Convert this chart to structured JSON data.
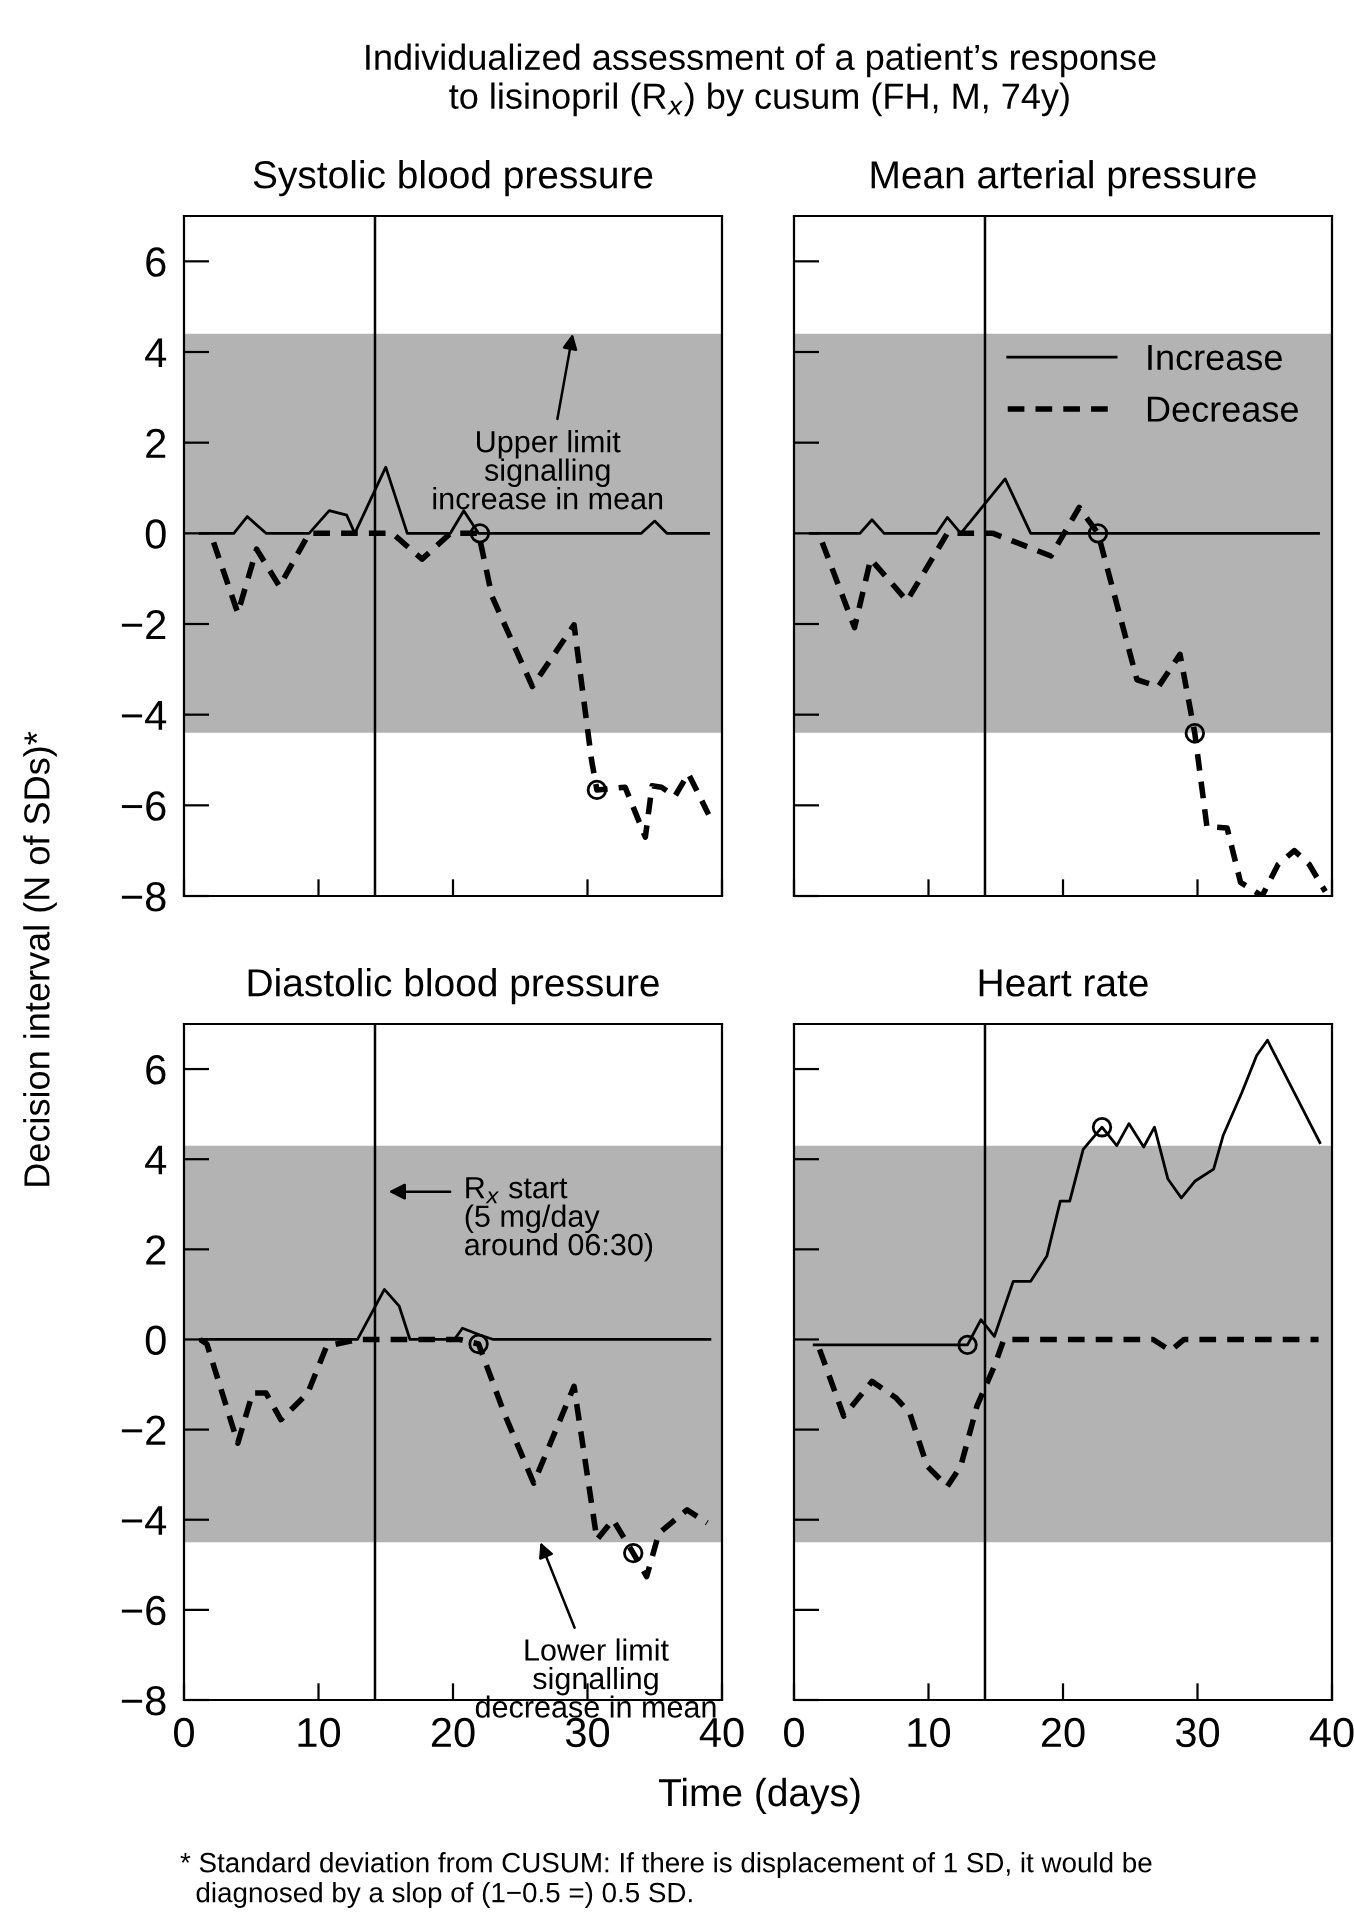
{
  "chart_data": [
    {
      "type": "line",
      "title": "Systolic blood pressure",
      "ylabel": "Decision interval (N of SDs)*",
      "annotations": [
        "Individualized assessment of a patient’s response\nto lisinopril (R$_{x}$) by cusum (FH, M, 74y)",
        {
          "text": "Upper limit\nsignalling\nincrease in mean",
          "x": 28.9,
          "y": 4.4
        }
      ],
      "xlim": [
        0,
        40
      ],
      "ylim": [
        -8,
        7
      ],
      "xticks": [
        0,
        10,
        20,
        30,
        40
      ],
      "yticks": [
        -8,
        -6,
        -4,
        -2,
        0,
        2,
        4,
        6
      ],
      "tick_labels": "y",
      "grid": false,
      "legend": false,
      "bands": [
        {
          "axis": "y",
          "from": -4.4,
          "to": 4.4,
          "color": "#b3b3b3"
        }
      ],
      "ref_lines": [
        {
          "axis": "x",
          "value": 14.2,
          "color": "#000000"
        }
      ],
      "series": [
        {
          "type": "line",
          "line_style": "solid",
          "color": "#000000",
          "x": [
            1.2,
            3.7,
            4.7,
            6.1,
            9.3,
            10.8,
            12.1,
            12.7,
            15.0,
            16.6,
            19.8,
            20.8,
            21.9,
            34.0,
            35.0,
            35.9,
            39.0
          ],
          "values": [
            0,
            0,
            0.37,
            0,
            0,
            0.5,
            0.4,
            0,
            1.46,
            0,
            0,
            0.5,
            0,
            0,
            0.27,
            0,
            0
          ]
        },
        {
          "type": "line",
          "line_style": "dashed",
          "color": "#000000",
          "x": [
            2.2,
            4.0,
            5.4,
            7.1,
            9.3,
            12.7,
            15.5,
            17.7,
            19.8,
            21.9,
            22.9,
            25.9,
            29.0,
            30.3,
            30.7,
            32.8,
            34.3,
            34.8,
            35.5,
            36.5,
            37.5,
            39.0
          ],
          "values": [
            -0.2,
            -1.76,
            -0.35,
            -1.17,
            0,
            0,
            0,
            -0.57,
            0,
            0,
            -1.39,
            -3.38,
            -2.02,
            -5.0,
            -5.66,
            -5.6,
            -6.7,
            -5.57,
            -5.6,
            -5.8,
            -5.3,
            -6.2
          ]
        },
        {
          "type": "scatter",
          "marker": "circle",
          "color": "#000000",
          "x": [
            22.0,
            30.7
          ],
          "values": [
            0,
            -5.66
          ]
        }
      ]
    },
    {
      "type": "line",
      "title": "Mean arterial pressure",
      "xlim": [
        0,
        40
      ],
      "ylim": [
        -8,
        7
      ],
      "xticks": [
        0,
        10,
        20,
        30,
        40
      ],
      "yticks": [
        -8,
        -6,
        -4,
        -2,
        0,
        2,
        4,
        6
      ],
      "tick_labels": false,
      "grid": false,
      "legend": "top right",
      "bands": [
        {
          "axis": "y",
          "from": -4.4,
          "to": 4.4,
          "color": "#b3b3b3"
        }
      ],
      "ref_lines": [
        {
          "axis": "x",
          "value": 14.2,
          "color": "#000000"
        }
      ],
      "series": [
        {
          "name": "Increase",
          "type": "line",
          "line_style": "solid",
          "color": "#000000",
          "x": [
            1.2,
            4.9,
            5.8,
            6.7,
            10.6,
            11.4,
            12.4,
            15.7,
            17.6,
            39.0
          ],
          "values": [
            0,
            0,
            0.3,
            0,
            0,
            0.35,
            0,
            1.2,
            0,
            0
          ]
        },
        {
          "name": "Decrease",
          "type": "line",
          "line_style": "dashed",
          "color": "#000000",
          "x": [
            2.1,
            4.5,
            5.7,
            8.4,
            11.4,
            14.8,
            19.1,
            21.2,
            22.6,
            25.5,
            27.1,
            28.7,
            29.8,
            30.7,
            32.2,
            33.2,
            34.8,
            36.0,
            37.2,
            38.3,
            39.5
          ],
          "values": [
            -0.2,
            -2.08,
            -0.57,
            -1.49,
            0,
            0,
            -0.5,
            0.57,
            0,
            -3.23,
            -3.38,
            -2.67,
            -4.41,
            -6.47,
            -6.5,
            -7.7,
            -8.0,
            -7.3,
            -7.0,
            -7.3,
            -7.9
          ]
        },
        {
          "type": "scatter",
          "marker": "circle",
          "color": "#000000",
          "x": [
            22.6,
            29.8
          ],
          "values": [
            0,
            -4.41
          ]
        }
      ]
    },
    {
      "type": "line",
      "title": "Diastolic blood pressure",
      "xlabel": "Time (days)",
      "annotations": [
        "R$_{x}$ start\n(5 mg/day\naround 06:30)",
        {
          "text": "Lower limit\nsignalling\ndecrease in mean",
          "x": 26.5,
          "y": -4.5
        },
        "* Standard deviation from CUSUM: If there is displacement of 1 SD, it would be\n  diagnosed by a slop of (1−0.5 =) 0.5 SD."
      ],
      "xlim": [
        0,
        40
      ],
      "ylim": [
        -8,
        7
      ],
      "xticks": [
        0,
        10,
        20,
        30,
        40
      ],
      "yticks": [
        -8,
        -6,
        -4,
        -2,
        0,
        2,
        4,
        6
      ],
      "grid": false,
      "legend": false,
      "bands": [
        {
          "axis": "y",
          "from": -4.5,
          "to": 4.3,
          "color": "#b3b3b3"
        }
      ],
      "ref_lines": [
        {
          "axis": "x",
          "value": 14.2,
          "color": "#000000"
        }
      ],
      "series": [
        {
          "type": "line",
          "line_style": "solid",
          "color": "#000000",
          "x": [
            1.2,
            12.9,
            14.9,
            16.0,
            16.8,
            20.1,
            20.7,
            22.0,
            23.0,
            39.1
          ],
          "values": [
            0,
            0,
            1.11,
            0.74,
            0,
            0,
            0.25,
            0.1,
            0,
            0
          ]
        },
        {
          "type": "line",
          "line_style": "dashed",
          "color": "#000000",
          "x": [
            1.2,
            1.7,
            4.0,
            5.1,
            6.1,
            7.2,
            9.2,
            10.6,
            12.9,
            20.5,
            21.9,
            23.8,
            26.0,
            29.0,
            30.7,
            31.9,
            33.4,
            34.4,
            35.3,
            37.4,
            38.9
          ],
          "values": [
            0,
            -0.1,
            -2.3,
            -1.19,
            -1.19,
            -1.78,
            -1.19,
            -0.15,
            0,
            0,
            -0.1,
            -1.63,
            -3.19,
            -1.04,
            -4.44,
            -4.0,
            -4.74,
            -5.26,
            -4.3,
            -3.78,
            -4.07
          ]
        },
        {
          "type": "scatter",
          "marker": "circle",
          "color": "#000000",
          "x": [
            21.9,
            33.4
          ],
          "values": [
            -0.1,
            -4.74
          ]
        }
      ]
    },
    {
      "type": "line",
      "title": "Heart rate",
      "xlim": [
        0,
        40
      ],
      "ylim": [
        -8,
        7
      ],
      "xticks": [
        0,
        10,
        20,
        30,
        40
      ],
      "yticks": [
        -8,
        -6,
        -4,
        -2,
        0,
        2,
        4,
        6
      ],
      "tick_labels": "x",
      "grid": false,
      "legend": false,
      "bands": [
        {
          "axis": "y",
          "from": -4.5,
          "to": 4.3,
          "color": "#b3b3b3"
        }
      ],
      "ref_lines": [
        {
          "axis": "x",
          "value": 14.2,
          "color": "#000000"
        }
      ],
      "series": [
        {
          "type": "line",
          "line_style": "solid",
          "color": "#000000",
          "x": [
            1.5,
            12.9,
            13.9,
            14.9,
            16.3,
            17.6,
            18.8,
            19.8,
            20.5,
            21.5,
            22.9,
            24.0,
            24.9,
            26.0,
            26.8,
            27.8,
            28.8,
            29.8,
            31.2,
            31.9,
            33.3,
            34.4,
            35.2,
            39.1
          ],
          "values": [
            -0.12,
            -0.12,
            0.44,
            0.07,
            1.29,
            1.29,
            1.85,
            3.07,
            3.07,
            4.22,
            4.71,
            4.3,
            4.79,
            4.27,
            4.71,
            3.56,
            3.14,
            3.51,
            3.78,
            4.52,
            5.48,
            6.3,
            6.64,
            4.37
          ]
        },
        {
          "type": "line",
          "line_style": "dashed",
          "color": "#000000",
          "x": [
            1.9,
            3.7,
            5.8,
            7.6,
            8.6,
            9.9,
            11.4,
            12.4,
            13.6,
            14.9,
            15.6,
            26.7,
            28.0,
            29.0,
            39.0
          ],
          "values": [
            -0.22,
            -1.7,
            -0.93,
            -1.3,
            -1.63,
            -2.81,
            -3.26,
            -2.81,
            -1.48,
            -0.59,
            0,
            0,
            -0.25,
            0,
            0
          ]
        },
        {
          "type": "scatter",
          "marker": "circle",
          "color": "#000000",
          "x": [
            12.9,
            22.9
          ],
          "values": [
            -0.12,
            4.71
          ]
        }
      ]
    }
  ]
}
